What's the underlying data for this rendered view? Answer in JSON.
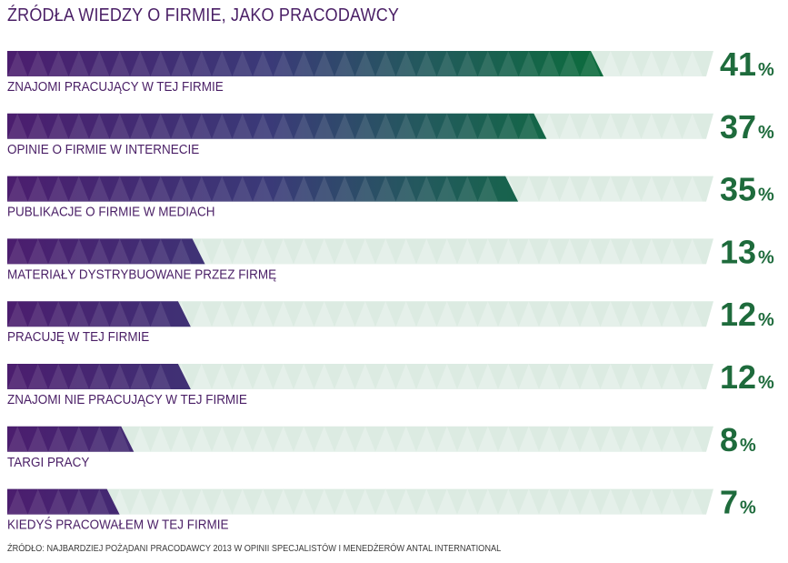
{
  "chart_data": {
    "type": "bar",
    "orientation": "horizontal",
    "title": "ŹRÓDŁA WIEDZY O FIRMIE, JAKO PRACODAWCY",
    "categories": [
      "ZNAJOMI PRACUJĄCY W TEJ FIRMIE",
      "OPINIE O FIRMIE W INTERNECIE",
      "PUBLIKACJE O FIRMIE W MEDIACH",
      "MATERIAŁY DYSTRYBUOWANE PRZEZ FIRMĘ",
      "PRACUJĘ W TEJ FIRMIE",
      "ZNAJOMI NIE PRACUJĄCY W TEJ FIRMIE",
      "TARGI PRACY",
      "KIEDYŚ PRACOWAŁEM W TEJ FIRMIE"
    ],
    "values": [
      41,
      37,
      35,
      13,
      12,
      12,
      8,
      7
    ],
    "value_suffix": "%",
    "source": "ŹRÓDŁO: NAJBARDZIEJ POŻĄDANI PRACODAWCY 2013 W OPINII SPECJALISTÓW I MENEDŻERÓW  ANTAL INTERNATIONAL",
    "colors": {
      "title": "#4a1f66",
      "label": "#4a1f66",
      "value": "#1e6b3c",
      "bar_start": "#4b1d6e",
      "bar_end": "#0d6b3e",
      "track": "#dcebe2"
    }
  }
}
